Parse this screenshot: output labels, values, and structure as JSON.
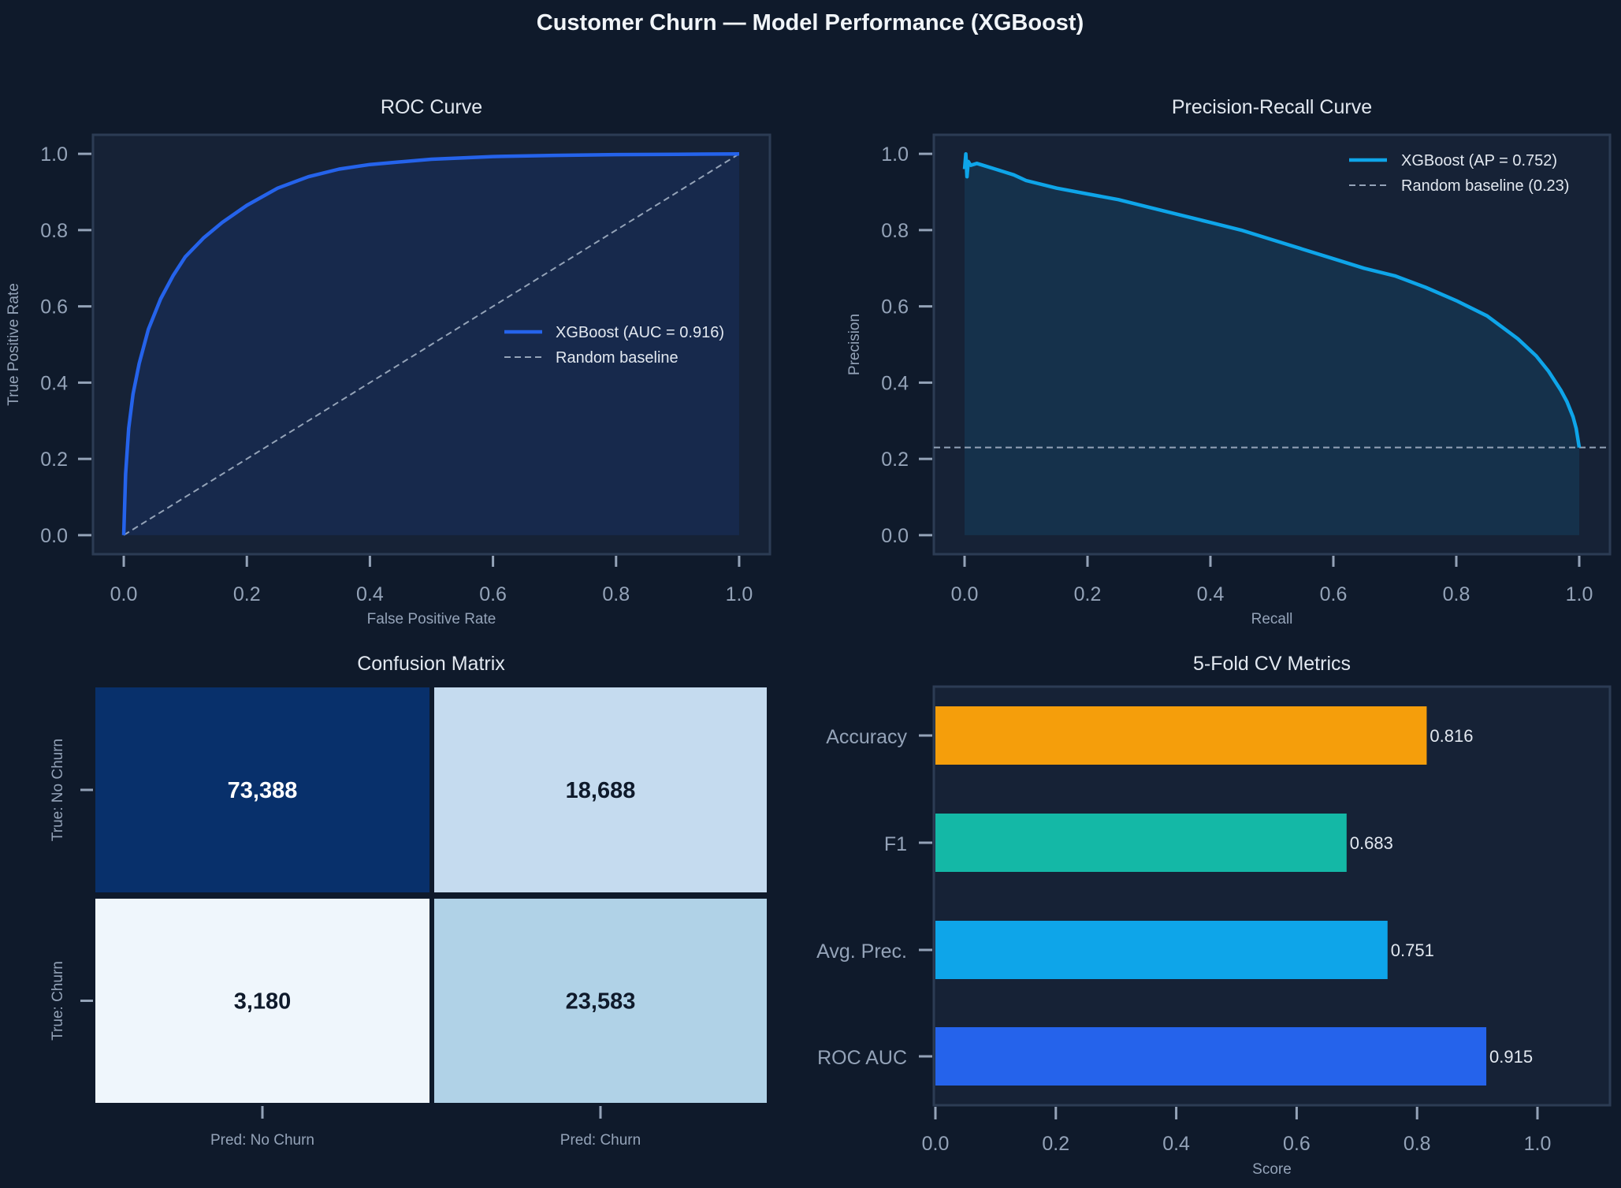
{
  "title": "Customer Churn — Model Performance (XGBoost)",
  "colors": {
    "background": "#0f1a2b",
    "axes": "#162236",
    "spine": "#2c3c54",
    "text": "#94a3b8",
    "roc": "#2563eb",
    "pr": "#0ea5e9",
    "baseline": "#94a3b8"
  },
  "chart_data": [
    {
      "type": "line",
      "title": "ROC Curve",
      "xlabel": "False Positive Rate",
      "ylabel": "True Positive Rate",
      "xlim": [
        -0.05,
        1.05
      ],
      "ylim": [
        -0.05,
        1.05
      ],
      "xticks": [
        "0.0",
        "0.2",
        "0.4",
        "0.6",
        "0.8",
        "1.0"
      ],
      "yticks": [
        "0.0",
        "0.2",
        "0.4",
        "0.6",
        "0.8",
        "1.0"
      ],
      "legend_position": "center-right",
      "series": [
        {
          "name": "XGBoost  (AUC = 0.916)",
          "color": "#2563eb",
          "x": [
            0,
            0.003,
            0.008,
            0.015,
            0.025,
            0.04,
            0.06,
            0.08,
            0.1,
            0.13,
            0.16,
            0.2,
            0.25,
            0.3,
            0.35,
            0.4,
            0.5,
            0.6,
            0.7,
            0.8,
            0.9,
            1.0
          ],
          "y": [
            0,
            0.16,
            0.28,
            0.37,
            0.45,
            0.54,
            0.62,
            0.68,
            0.73,
            0.78,
            0.82,
            0.865,
            0.91,
            0.94,
            0.96,
            0.972,
            0.986,
            0.993,
            0.996,
            0.998,
            0.999,
            1.0
          ]
        },
        {
          "name": "Random baseline",
          "color": "#94a3b8",
          "style": "dashed",
          "x": [
            0,
            1
          ],
          "y": [
            0,
            1
          ]
        }
      ]
    },
    {
      "type": "line",
      "title": "Precision-Recall Curve",
      "xlabel": "Recall",
      "ylabel": "Precision",
      "xlim": [
        -0.05,
        1.05
      ],
      "ylim": [
        -0.05,
        1.05
      ],
      "xticks": [
        "0.0",
        "0.2",
        "0.4",
        "0.6",
        "0.8",
        "1.0"
      ],
      "yticks": [
        "0.0",
        "0.2",
        "0.4",
        "0.6",
        "0.8",
        "1.0"
      ],
      "legend_position": "top-right",
      "series": [
        {
          "name": "XGBoost  (AP = 0.752)",
          "color": "#0ea5e9",
          "x": [
            0,
            0.002,
            0.004,
            0.006,
            0.01,
            0.02,
            0.03,
            0.05,
            0.08,
            0.1,
            0.15,
            0.2,
            0.25,
            0.3,
            0.35,
            0.4,
            0.45,
            0.5,
            0.55,
            0.6,
            0.65,
            0.7,
            0.75,
            0.8,
            0.85,
            0.9,
            0.93,
            0.95,
            0.97,
            0.98,
            0.99,
            0.995,
            1.0
          ],
          "y": [
            0.96,
            1.0,
            0.94,
            0.98,
            0.97,
            0.975,
            0.97,
            0.96,
            0.945,
            0.93,
            0.91,
            0.895,
            0.88,
            0.86,
            0.84,
            0.82,
            0.8,
            0.775,
            0.75,
            0.725,
            0.7,
            0.68,
            0.65,
            0.615,
            0.575,
            0.515,
            0.47,
            0.43,
            0.38,
            0.35,
            0.31,
            0.28,
            0.23
          ]
        },
        {
          "name": "Random baseline (0.23)",
          "color": "#94a3b8",
          "style": "dashed",
          "y_const": 0.23
        }
      ]
    },
    {
      "type": "heatmap",
      "title": "Confusion Matrix",
      "row_labels": [
        "True: No Churn",
        "True: Churn"
      ],
      "col_labels": [
        "Pred: No Churn",
        "Pred: Churn"
      ],
      "values": [
        [
          73388,
          18688
        ],
        [
          3180,
          23583
        ]
      ],
      "display": [
        [
          "73,388",
          "18,688"
        ],
        [
          "3,180",
          "23,583"
        ]
      ],
      "colormap": "Blues"
    },
    {
      "type": "bar",
      "orientation": "horizontal",
      "title": "5-Fold CV Metrics",
      "xlabel": "Score",
      "xlim": [
        0,
        1.12
      ],
      "xticks": [
        "0.0",
        "0.2",
        "0.4",
        "0.6",
        "0.8",
        "1.0"
      ],
      "categories": [
        "Accuracy",
        "F1",
        "Avg. Prec.",
        "ROC AUC"
      ],
      "values": [
        0.816,
        0.683,
        0.751,
        0.915
      ],
      "labels": [
        "0.816",
        "0.683",
        "0.751",
        "0.915"
      ],
      "colors": [
        "#f59e0b",
        "#14b8a6",
        "#0ea5e9",
        "#2563eb"
      ]
    }
  ]
}
